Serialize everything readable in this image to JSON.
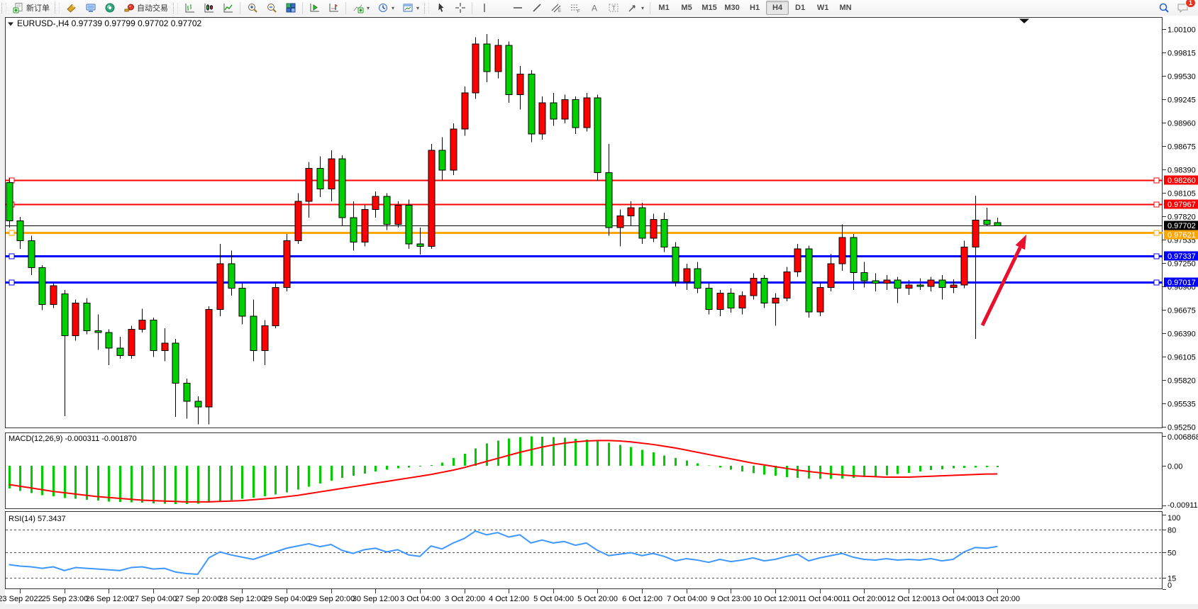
{
  "toolbar": {
    "new_order": "新订单",
    "auto_trading": "自动交易",
    "timeframes": [
      "M1",
      "M5",
      "M15",
      "M30",
      "H1",
      "H4",
      "D1",
      "W1",
      "MN"
    ],
    "active_timeframe": "H4",
    "notification_badge": "1",
    "icon_letters": {
      "text_tool": "A",
      "label_tool": "T",
      "channel_suffix": "E",
      "fibo_suffix": "F"
    }
  },
  "chart_data": {
    "type": "candlestick",
    "title": "EURUSD-,H4",
    "ohlc_text": "0.97739 0.97799 0.97702 0.97702",
    "colors": {
      "bull": "#ff0000",
      "bear": "#00cf00",
      "wick": "#000000",
      "hline_red": "#ff0000",
      "hline_orange": "#ffa500",
      "hline_blue": "#0000ff",
      "bid_line": "#000000",
      "macd_hist": "#00cc00",
      "macd_signal": "#ff0000",
      "rsi_line": "#3e97ff",
      "arrow": "#e8112d"
    },
    "price_axis": {
      "min": 0.9525,
      "max": 1.001,
      "ticks": [
        "1.00100",
        "0.99815",
        "0.99530",
        "0.99245",
        "0.98960",
        "0.98675",
        "0.98390",
        "0.98105",
        "0.97820",
        "0.97535",
        "0.97250",
        "0.96960",
        "0.96675",
        "0.96390",
        "0.96105",
        "0.95820",
        "0.95535",
        "0.95250"
      ]
    },
    "hlines": [
      {
        "price": 0.9826,
        "label": "0.98260",
        "color": "#ff0000",
        "width": 2,
        "handles": true
      },
      {
        "price": 0.97967,
        "label": "0.97967",
        "color": "#ff0000",
        "width": 2,
        "handles": true
      },
      {
        "price": 0.97702,
        "label": "0.97702",
        "color": "#000000",
        "width": 1,
        "handles": false
      },
      {
        "price": 0.97621,
        "label": "0.97621",
        "color": "#ffa500",
        "width": 3,
        "handles": true
      },
      {
        "price": 0.97337,
        "label": "0.97337",
        "color": "#0000ff",
        "width": 3,
        "handles": true
      },
      {
        "price": 0.97017,
        "label": "0.97017",
        "color": "#0000ff",
        "width": 3,
        "handles": true
      }
    ],
    "time_labels": [
      "23 Sep 2022",
      "25 Sep 23:00",
      "26 Sep 12:00",
      "27 Sep 04:00",
      "27 Sep 20:00",
      "28 Sep 12:00",
      "29 Sep 04:00",
      "29 Sep 20:00",
      "30 Sep 12:00",
      "3 Oct 04:00",
      "3 Oct 20:00",
      "4 Oct 12:00",
      "5 Oct 04:00",
      "5 Oct 20:00",
      "6 Oct 12:00",
      "7 Oct 04:00",
      "9 Oct 23:00",
      "10 Oct 12:00",
      "11 Oct 04:00",
      "11 Oct 20:00",
      "12 Oct 12:00",
      "13 Oct 04:00",
      "13 Oct 20:00"
    ],
    "candles": [
      [
        0.9823,
        0.9828,
        0.9768,
        0.9776
      ],
      [
        0.9776,
        0.9781,
        0.9742,
        0.9752
      ],
      [
        0.9752,
        0.9758,
        0.971,
        0.9719
      ],
      [
        0.9719,
        0.9722,
        0.9667,
        0.9674
      ],
      [
        0.9674,
        0.97,
        0.967,
        0.9697
      ],
      [
        0.9687,
        0.9692,
        0.9538,
        0.9636
      ],
      [
        0.9636,
        0.968,
        0.963,
        0.9676
      ],
      [
        0.9676,
        0.9682,
        0.9638,
        0.9642
      ],
      [
        0.9642,
        0.9662,
        0.9619,
        0.964
      ],
      [
        0.964,
        0.9644,
        0.96,
        0.9621
      ],
      [
        0.9621,
        0.9635,
        0.9608,
        0.9612
      ],
      [
        0.9612,
        0.9648,
        0.9608,
        0.9644
      ],
      [
        0.9644,
        0.9669,
        0.964,
        0.9655
      ],
      [
        0.9655,
        0.9658,
        0.961,
        0.9618
      ],
      [
        0.9618,
        0.9645,
        0.9605,
        0.9627
      ],
      [
        0.9627,
        0.9632,
        0.9537,
        0.9578
      ],
      [
        0.9578,
        0.9584,
        0.9535,
        0.9556
      ],
      [
        0.9556,
        0.9562,
        0.9528,
        0.9549
      ],
      [
        0.9549,
        0.9672,
        0.9528,
        0.9668
      ],
      [
        0.9668,
        0.9748,
        0.966,
        0.9724
      ],
      [
        0.9724,
        0.974,
        0.9685,
        0.9694
      ],
      [
        0.9694,
        0.97,
        0.965,
        0.966
      ],
      [
        0.966,
        0.968,
        0.9605,
        0.9618
      ],
      [
        0.9618,
        0.9655,
        0.96,
        0.9648
      ],
      [
        0.9648,
        0.97,
        0.9645,
        0.9695
      ],
      [
        0.9695,
        0.976,
        0.969,
        0.9752
      ],
      [
        0.9752,
        0.981,
        0.9748,
        0.98
      ],
      [
        0.98,
        0.9848,
        0.978,
        0.984
      ],
      [
        0.984,
        0.9855,
        0.9805,
        0.9815
      ],
      [
        0.9815,
        0.9862,
        0.98,
        0.9852
      ],
      [
        0.9852,
        0.9856,
        0.977,
        0.978
      ],
      [
        0.978,
        0.98,
        0.974,
        0.975
      ],
      [
        0.975,
        0.9795,
        0.9745,
        0.979
      ],
      [
        0.979,
        0.9812,
        0.978,
        0.9806
      ],
      [
        0.9806,
        0.981,
        0.9765,
        0.9772
      ],
      [
        0.9772,
        0.98,
        0.9768,
        0.9795
      ],
      [
        0.9795,
        0.9802,
        0.9742,
        0.9748
      ],
      [
        0.9748,
        0.9768,
        0.9735,
        0.9745
      ],
      [
        0.9745,
        0.987,
        0.9742,
        0.9862
      ],
      [
        0.9862,
        0.9878,
        0.9825,
        0.9838
      ],
      [
        0.9838,
        0.9895,
        0.9832,
        0.9888
      ],
      [
        0.9888,
        0.994,
        0.988,
        0.9932
      ],
      [
        0.9932,
        1.0,
        0.9925,
        0.9992
      ],
      [
        0.9992,
        1.0004,
        0.9945,
        0.9958
      ],
      [
        0.9958,
        0.9998,
        0.995,
        0.999
      ],
      [
        0.999,
        0.9995,
        0.992,
        0.993
      ],
      [
        0.993,
        0.9965,
        0.9912,
        0.9955
      ],
      [
        0.9955,
        0.996,
        0.9872,
        0.9882
      ],
      [
        0.9882,
        0.9928,
        0.9875,
        0.992
      ],
      [
        0.992,
        0.9932,
        0.9892,
        0.99
      ],
      [
        0.99,
        0.993,
        0.9895,
        0.9924
      ],
      [
        0.9924,
        0.9928,
        0.9882,
        0.989
      ],
      [
        0.989,
        0.9932,
        0.9885,
        0.9926
      ],
      [
        0.9926,
        0.993,
        0.9825,
        0.9835
      ],
      [
        0.9835,
        0.987,
        0.9758,
        0.9768
      ],
      [
        0.9768,
        0.979,
        0.9745,
        0.9782
      ],
      [
        0.9782,
        0.98,
        0.977,
        0.9792
      ],
      [
        0.9792,
        0.9798,
        0.9748,
        0.9755
      ],
      [
        0.9755,
        0.9785,
        0.975,
        0.9778
      ],
      [
        0.9778,
        0.9786,
        0.9738,
        0.9744
      ],
      [
        0.9744,
        0.975,
        0.9696,
        0.9702
      ],
      [
        0.9702,
        0.9724,
        0.9692,
        0.9718
      ],
      [
        0.9718,
        0.9726,
        0.9688,
        0.9694
      ],
      [
        0.9694,
        0.97,
        0.9662,
        0.9668
      ],
      [
        0.9668,
        0.9692,
        0.966,
        0.9688
      ],
      [
        0.9688,
        0.9694,
        0.9664,
        0.967
      ],
      [
        0.967,
        0.969,
        0.9662,
        0.9685
      ],
      [
        0.9685,
        0.9712,
        0.968,
        0.9706
      ],
      [
        0.9706,
        0.971,
        0.967,
        0.9676
      ],
      [
        0.9676,
        0.9688,
        0.9648,
        0.9682
      ],
      [
        0.9682,
        0.972,
        0.9678,
        0.9714
      ],
      [
        0.9714,
        0.9748,
        0.9708,
        0.9742
      ],
      [
        0.9742,
        0.9746,
        0.9658,
        0.9665
      ],
      [
        0.9665,
        0.97,
        0.966,
        0.9695
      ],
      [
        0.9695,
        0.9736,
        0.969,
        0.9724
      ],
      [
        0.9724,
        0.9772,
        0.9715,
        0.9756
      ],
      [
        0.9756,
        0.976,
        0.9692,
        0.9713
      ],
      [
        0.9713,
        0.9726,
        0.9695,
        0.9703
      ],
      [
        0.9703,
        0.9712,
        0.969,
        0.97
      ],
      [
        0.97,
        0.971,
        0.9692,
        0.9704
      ],
      [
        0.9704,
        0.9708,
        0.9676,
        0.9694
      ],
      [
        0.9694,
        0.9704,
        0.9686,
        0.9698
      ],
      [
        0.9698,
        0.9706,
        0.9692,
        0.9696
      ],
      [
        0.9696,
        0.9708,
        0.969,
        0.9704
      ],
      [
        0.9704,
        0.971,
        0.968,
        0.9695
      ],
      [
        0.9695,
        0.9705,
        0.9688,
        0.9698
      ],
      [
        0.9698,
        0.9752,
        0.9694,
        0.9744
      ],
      [
        0.9744,
        0.9807,
        0.9632,
        0.9777
      ],
      [
        0.9777,
        0.9792,
        0.977,
        0.9772
      ],
      [
        0.97739,
        0.97799,
        0.97702,
        0.97702
      ]
    ],
    "macd": {
      "label": "MACD(12,26,9) -0.000311 -0.001870",
      "axis_ticks": [
        "0.006868",
        "0.00",
        "-0.009114"
      ],
      "histogram": [
        -0.0052,
        -0.0058,
        -0.0063,
        -0.0068,
        -0.007,
        -0.0074,
        -0.0076,
        -0.0078,
        -0.008,
        -0.0082,
        -0.0083,
        -0.0084,
        -0.0085,
        -0.0086,
        -0.0087,
        -0.0088,
        -0.0088,
        -0.0087,
        -0.0085,
        -0.0082,
        -0.0079,
        -0.0076,
        -0.0073,
        -0.007,
        -0.0066,
        -0.0061,
        -0.0055,
        -0.0048,
        -0.0041,
        -0.0034,
        -0.0028,
        -0.0023,
        -0.0018,
        -0.0013,
        -0.0009,
        -0.0006,
        -0.0004,
        -0.0002,
        0.0002,
        0.0007,
        0.0018,
        0.0028,
        0.004,
        0.0051,
        0.0058,
        0.0063,
        0.0066,
        0.0068,
        0.0067,
        0.0066,
        0.0064,
        0.0062,
        0.006,
        0.0057,
        0.0053,
        0.0048,
        0.0043,
        0.0037,
        0.0031,
        0.0024,
        0.0018,
        0.0012,
        0.0006,
        0.0001,
        -0.0004,
        -0.0009,
        -0.0013,
        -0.0017,
        -0.002,
        -0.0023,
        -0.0026,
        -0.0028,
        -0.0029,
        -0.003,
        -0.003,
        -0.0029,
        -0.0028,
        -0.0026,
        -0.0024,
        -0.0022,
        -0.0019,
        -0.0016,
        -0.0013,
        -0.001,
        -0.0008,
        -0.0006,
        -0.0005,
        -0.0004,
        -0.0003,
        -0.000311
      ],
      "signal": [
        -0.0043,
        -0.0047,
        -0.0051,
        -0.0055,
        -0.0059,
        -0.0062,
        -0.0065,
        -0.0068,
        -0.0071,
        -0.0073,
        -0.0075,
        -0.0077,
        -0.0079,
        -0.008,
        -0.0081,
        -0.0082,
        -0.0083,
        -0.0083,
        -0.0083,
        -0.0082,
        -0.0081,
        -0.008,
        -0.0078,
        -0.0076,
        -0.0074,
        -0.0071,
        -0.0068,
        -0.0064,
        -0.006,
        -0.0056,
        -0.0052,
        -0.0048,
        -0.0044,
        -0.004,
        -0.0036,
        -0.0032,
        -0.0028,
        -0.0024,
        -0.002,
        -0.0015,
        -0.001,
        -0.0004,
        0.0003,
        0.001,
        0.0017,
        0.0024,
        0.0031,
        0.0037,
        0.0043,
        0.0048,
        0.0052,
        0.0055,
        0.0057,
        0.0058,
        0.0058,
        0.0057,
        0.0055,
        0.0052,
        0.0049,
        0.0045,
        0.0041,
        0.0036,
        0.0031,
        0.0026,
        0.0021,
        0.0016,
        0.0011,
        0.0006,
        0.0002,
        -0.0002,
        -0.0006,
        -0.001,
        -0.0013,
        -0.0016,
        -0.0019,
        -0.0021,
        -0.0023,
        -0.0024,
        -0.0025,
        -0.0026,
        -0.0026,
        -0.0026,
        -0.0025,
        -0.0024,
        -0.0023,
        -0.0022,
        -0.0021,
        -0.002,
        -0.0019,
        -0.00187
      ]
    },
    "rsi": {
      "label": "RSI(14) 57.3437",
      "axis_ticks": [
        "100",
        "80",
        "50",
        "15",
        "0"
      ],
      "levels": [
        80,
        50,
        15
      ],
      "values": [
        33,
        31,
        30,
        28,
        30,
        25,
        29,
        28,
        27,
        26,
        25,
        29,
        30,
        27,
        28,
        23,
        21,
        20,
        42,
        50,
        46,
        43,
        40,
        45,
        50,
        55,
        58,
        61,
        57,
        60,
        52,
        48,
        53,
        55,
        50,
        53,
        46,
        44,
        58,
        54,
        62,
        68,
        78,
        73,
        76,
        70,
        73,
        62,
        66,
        62,
        64,
        59,
        62,
        52,
        45,
        47,
        49,
        45,
        48,
        44,
        38,
        41,
        39,
        36,
        40,
        37,
        39,
        42,
        38,
        40,
        44,
        47,
        38,
        42,
        45,
        48,
        43,
        40,
        39,
        41,
        39,
        40,
        39,
        41,
        38,
        40,
        50,
        56,
        55,
        57.3437
      ]
    },
    "annotation_arrow": {
      "from": [
        1385,
        459
      ],
      "to": [
        1447,
        331
      ]
    }
  }
}
